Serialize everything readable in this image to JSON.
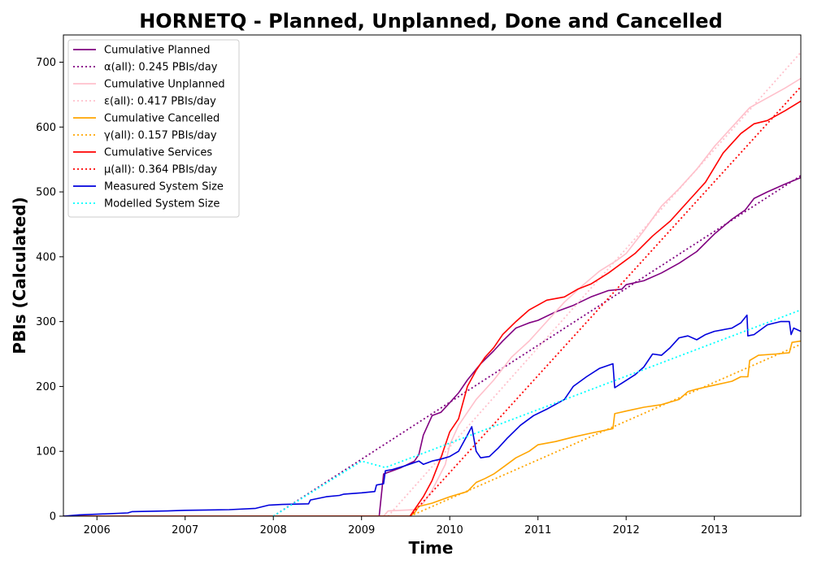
{
  "chart_data": {
    "type": "line",
    "title": "HORNETQ - Planned, Unplanned, Done  and Cancelled",
    "xlabel": "Time",
    "ylabel": "PBIs (Calculated)",
    "xlim": [
      2005.62,
      2013.98
    ],
    "ylim": [
      0,
      742
    ],
    "x_ticks": [
      2006,
      2007,
      2008,
      2009,
      2010,
      2011,
      2012,
      2013
    ],
    "x_tick_labels": [
      "2006",
      "2007",
      "2008",
      "2009",
      "2010",
      "2011",
      "2012",
      "2013"
    ],
    "y_ticks": [
      0,
      100,
      200,
      300,
      400,
      500,
      600,
      700
    ],
    "y_tick_labels": [
      "0",
      "100",
      "200",
      "300",
      "400",
      "500",
      "600",
      "700"
    ],
    "grid": false,
    "legend_position": "upper-left",
    "series": [
      {
        "name": "Cumulative Planned",
        "color": "#800080",
        "style": "solid",
        "points": [
          [
            2005.62,
            0
          ],
          [
            2008.0,
            0
          ],
          [
            2008.3,
            0
          ],
          [
            2009.2,
            0
          ],
          [
            2009.25,
            65
          ],
          [
            2009.45,
            75
          ],
          [
            2009.6,
            85
          ],
          [
            2009.65,
            95
          ],
          [
            2009.7,
            125
          ],
          [
            2009.8,
            155
          ],
          [
            2009.9,
            160
          ],
          [
            2010.0,
            175
          ],
          [
            2010.1,
            190
          ],
          [
            2010.2,
            210
          ],
          [
            2010.35,
            235
          ],
          [
            2010.5,
            255
          ],
          [
            2010.6,
            270
          ],
          [
            2010.75,
            290
          ],
          [
            2010.9,
            298
          ],
          [
            2011.0,
            302
          ],
          [
            2011.2,
            315
          ],
          [
            2011.4,
            325
          ],
          [
            2011.6,
            338
          ],
          [
            2011.8,
            348
          ],
          [
            2011.95,
            350
          ],
          [
            2012.0,
            357
          ],
          [
            2012.2,
            363
          ],
          [
            2012.4,
            375
          ],
          [
            2012.6,
            390
          ],
          [
            2012.8,
            408
          ],
          [
            2013.0,
            435
          ],
          [
            2013.2,
            458
          ],
          [
            2013.35,
            472
          ],
          [
            2013.45,
            490
          ],
          [
            2013.6,
            500
          ],
          [
            2013.8,
            512
          ],
          [
            2013.98,
            522
          ]
        ]
      },
      {
        "name": "α(all): 0.245 PBIs/day",
        "color": "#800080",
        "style": "dotted",
        "points": [
          [
            2008.0,
            0
          ],
          [
            2013.98,
            525
          ]
        ]
      },
      {
        "name": "Cumulative Unplanned",
        "color": "#ffc0cb",
        "style": "solid",
        "points": [
          [
            2005.62,
            0
          ],
          [
            2009.0,
            0
          ],
          [
            2009.25,
            0
          ],
          [
            2009.3,
            8
          ],
          [
            2009.6,
            10
          ],
          [
            2009.7,
            20
          ],
          [
            2009.8,
            40
          ],
          [
            2009.95,
            80
          ],
          [
            2010.0,
            110
          ],
          [
            2010.1,
            140
          ],
          [
            2010.3,
            180
          ],
          [
            2010.5,
            210
          ],
          [
            2010.7,
            245
          ],
          [
            2010.9,
            270
          ],
          [
            2011.1,
            300
          ],
          [
            2011.3,
            330
          ],
          [
            2011.5,
            355
          ],
          [
            2011.7,
            378
          ],
          [
            2011.9,
            395
          ],
          [
            2012.0,
            405
          ],
          [
            2012.2,
            440
          ],
          [
            2012.4,
            478
          ],
          [
            2012.6,
            505
          ],
          [
            2012.8,
            535
          ],
          [
            2013.0,
            570
          ],
          [
            2013.2,
            600
          ],
          [
            2013.4,
            630
          ],
          [
            2013.6,
            645
          ],
          [
            2013.8,
            660
          ],
          [
            2013.98,
            675
          ]
        ]
      },
      {
        "name": "ε(all): 0.417 PBIs/day",
        "color": "#ffc0cb",
        "style": "dotted",
        "points": [
          [
            2009.3,
            0
          ],
          [
            2013.98,
            715
          ]
        ]
      },
      {
        "name": "Cumulative Cancelled",
        "color": "#ffa500",
        "style": "solid",
        "points": [
          [
            2005.62,
            0
          ],
          [
            2009.55,
            0
          ],
          [
            2009.6,
            5
          ],
          [
            2009.65,
            15
          ],
          [
            2009.8,
            20
          ],
          [
            2010.0,
            30
          ],
          [
            2010.2,
            38
          ],
          [
            2010.3,
            52
          ],
          [
            2010.4,
            58
          ],
          [
            2010.5,
            65
          ],
          [
            2010.6,
            75
          ],
          [
            2010.75,
            90
          ],
          [
            2010.9,
            100
          ],
          [
            2011.0,
            110
          ],
          [
            2011.2,
            115
          ],
          [
            2011.4,
            122
          ],
          [
            2011.6,
            128
          ],
          [
            2011.85,
            135
          ],
          [
            2011.87,
            158
          ],
          [
            2012.0,
            162
          ],
          [
            2012.2,
            168
          ],
          [
            2012.4,
            172
          ],
          [
            2012.6,
            180
          ],
          [
            2012.7,
            192
          ],
          [
            2012.8,
            196
          ],
          [
            2013.0,
            202
          ],
          [
            2013.2,
            208
          ],
          [
            2013.3,
            215
          ],
          [
            2013.38,
            215
          ],
          [
            2013.4,
            240
          ],
          [
            2013.5,
            248
          ],
          [
            2013.7,
            250
          ],
          [
            2013.85,
            252
          ],
          [
            2013.88,
            268
          ],
          [
            2013.98,
            270
          ]
        ]
      },
      {
        "name": "γ(all): 0.157 PBIs/day",
        "color": "#ffa500",
        "style": "dotted",
        "points": [
          [
            2009.55,
            0
          ],
          [
            2013.98,
            265
          ]
        ]
      },
      {
        "name": "Cumulative Services",
        "color": "#ff0000",
        "style": "solid",
        "points": [
          [
            2005.62,
            0
          ],
          [
            2009.55,
            0
          ],
          [
            2009.6,
            10
          ],
          [
            2009.7,
            30
          ],
          [
            2009.8,
            55
          ],
          [
            2009.9,
            90
          ],
          [
            2010.0,
            130
          ],
          [
            2010.1,
            150
          ],
          [
            2010.2,
            200
          ],
          [
            2010.3,
            225
          ],
          [
            2010.4,
            245
          ],
          [
            2010.5,
            260
          ],
          [
            2010.6,
            280
          ],
          [
            2010.75,
            300
          ],
          [
            2010.9,
            318
          ],
          [
            2011.1,
            333
          ],
          [
            2011.3,
            338
          ],
          [
            2011.45,
            350
          ],
          [
            2011.6,
            358
          ],
          [
            2011.8,
            375
          ],
          [
            2011.95,
            390
          ],
          [
            2012.1,
            405
          ],
          [
            2012.3,
            432
          ],
          [
            2012.5,
            455
          ],
          [
            2012.7,
            485
          ],
          [
            2012.9,
            515
          ],
          [
            2013.1,
            560
          ],
          [
            2013.3,
            590
          ],
          [
            2013.45,
            605
          ],
          [
            2013.6,
            610
          ],
          [
            2013.8,
            625
          ],
          [
            2013.98,
            640
          ]
        ]
      },
      {
        "name": "μ(all): 0.364 PBIs/day",
        "color": "#ff0000",
        "style": "dotted",
        "points": [
          [
            2009.55,
            0
          ],
          [
            2013.98,
            662
          ]
        ]
      },
      {
        "name": "Measured System Size",
        "color": "#0000dd",
        "style": "solid",
        "points": [
          [
            2005.62,
            0
          ],
          [
            2005.8,
            2
          ],
          [
            2006.0,
            3
          ],
          [
            2006.35,
            5
          ],
          [
            2006.4,
            7
          ],
          [
            2006.8,
            8
          ],
          [
            2007.0,
            9
          ],
          [
            2007.5,
            10
          ],
          [
            2007.8,
            12
          ],
          [
            2007.95,
            17
          ],
          [
            2008.1,
            18
          ],
          [
            2008.4,
            19
          ],
          [
            2008.42,
            25
          ],
          [
            2008.6,
            30
          ],
          [
            2008.75,
            32
          ],
          [
            2008.8,
            34
          ],
          [
            2009.0,
            36
          ],
          [
            2009.15,
            38
          ],
          [
            2009.17,
            48
          ],
          [
            2009.25,
            50
          ],
          [
            2009.27,
            70
          ],
          [
            2009.35,
            72
          ],
          [
            2009.5,
            78
          ],
          [
            2009.65,
            85
          ],
          [
            2009.7,
            80
          ],
          [
            2009.8,
            85
          ],
          [
            2009.9,
            88
          ],
          [
            2010.0,
            92
          ],
          [
            2010.1,
            100
          ],
          [
            2010.2,
            125
          ],
          [
            2010.25,
            138
          ],
          [
            2010.3,
            100
          ],
          [
            2010.35,
            90
          ],
          [
            2010.45,
            92
          ],
          [
            2010.55,
            105
          ],
          [
            2010.65,
            120
          ],
          [
            2010.8,
            140
          ],
          [
            2010.95,
            155
          ],
          [
            2011.1,
            165
          ],
          [
            2011.3,
            180
          ],
          [
            2011.4,
            200
          ],
          [
            2011.55,
            215
          ],
          [
            2011.7,
            228
          ],
          [
            2011.85,
            235
          ],
          [
            2011.87,
            198
          ],
          [
            2011.95,
            205
          ],
          [
            2012.1,
            218
          ],
          [
            2012.2,
            230
          ],
          [
            2012.3,
            250
          ],
          [
            2012.4,
            248
          ],
          [
            2012.5,
            260
          ],
          [
            2012.6,
            275
          ],
          [
            2012.7,
            278
          ],
          [
            2012.8,
            272
          ],
          [
            2012.9,
            280
          ],
          [
            2013.0,
            285
          ],
          [
            2013.2,
            290
          ],
          [
            2013.3,
            298
          ],
          [
            2013.37,
            310
          ],
          [
            2013.38,
            278
          ],
          [
            2013.45,
            280
          ],
          [
            2013.6,
            295
          ],
          [
            2013.75,
            300
          ],
          [
            2013.85,
            300
          ],
          [
            2013.87,
            280
          ],
          [
            2013.9,
            290
          ],
          [
            2013.98,
            285
          ]
        ]
      },
      {
        "name": "Modelled System Size",
        "color": "#00ffff",
        "style": "dotted",
        "points": [
          [
            2008.0,
            0
          ],
          [
            2009.0,
            85
          ],
          [
            2009.27,
            75
          ],
          [
            2013.98,
            318
          ]
        ]
      }
    ]
  }
}
